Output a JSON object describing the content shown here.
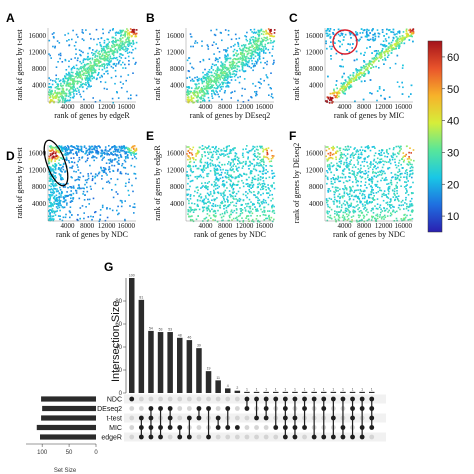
{
  "colorbar": {
    "ticks": [
      60,
      50,
      40,
      30,
      20,
      10
    ],
    "range": [
      5,
      65
    ],
    "stops": [
      "#2a1fb0",
      "#1f6fe0",
      "#19c7e6",
      "#58e69a",
      "#d6ee3a",
      "#f7b22a",
      "#e9542b",
      "#a4131b"
    ]
  },
  "panels": [
    {
      "letter": "A",
      "xlabel": "rank of genes by edgeR",
      "ylabel": "rank of genes by t-test",
      "pattern": "corr",
      "xticks": [
        "4000",
        "8000",
        "12000",
        "16000"
      ],
      "yticks": [
        "4000",
        "8000",
        "12000",
        "16000"
      ]
    },
    {
      "letter": "B",
      "xlabel": "rank of genes by DEseq2",
      "ylabel": "rank of genes by t-test",
      "pattern": "corr",
      "xticks": [
        "4000",
        "8000",
        "12000",
        "16000"
      ],
      "yticks": [
        "4000",
        "8000",
        "12000",
        "16000"
      ]
    },
    {
      "letter": "C",
      "xlabel": "rank of genes by MIC",
      "ylabel": "rank of genes by t-test",
      "pattern": "tight",
      "xticks": [
        "4000",
        "8000",
        "12000",
        "16000"
      ],
      "yticks": [
        "4000",
        "8000",
        "12000",
        "16000"
      ],
      "circle": true
    },
    {
      "letter": "D",
      "xlabel": "rank of genes by NDC",
      "ylabel": "rank of genes by t-test",
      "pattern": "fan",
      "xticks": [
        "4000",
        "8000",
        "12000",
        "16000"
      ],
      "yticks": [
        "4000",
        "8000",
        "12000",
        "16000"
      ],
      "ellipse": true
    },
    {
      "letter": "E",
      "xlabel": "rank of genes by NDC",
      "ylabel": "rank of genes by edgeR",
      "pattern": "uniform",
      "xticks": [
        "4000",
        "8000",
        "12000",
        "16000"
      ],
      "yticks": [
        "4000",
        "8000",
        "12000",
        "16000"
      ]
    },
    {
      "letter": "F",
      "xlabel": "rank of genes by NDC",
      "ylabel": "rank of genes by DEseq2",
      "pattern": "uniform",
      "xticks": [
        "4000",
        "8000",
        "12000",
        "16000"
      ],
      "yticks": [
        "4000",
        "8000",
        "12000",
        "16000"
      ]
    }
  ],
  "upset": {
    "letter": "G",
    "ylabel": "Intersection Size",
    "xlabel": "Set Size",
    "set_names": [
      "NDC",
      "DEseq2",
      "t-test",
      "MIC",
      "edgeR"
    ],
    "set_size_ticks": [
      "100",
      "50",
      "0"
    ]
  },
  "chart_data": [
    {
      "type": "upset",
      "ylabel": "Intersection Size",
      "ylim": [
        0,
        100
      ],
      "yticks": [
        0,
        20,
        40,
        60,
        80
      ],
      "intersection_sizes": [
        100,
        81,
        54,
        53,
        53,
        48,
        46,
        39,
        19,
        11,
        4,
        2,
        1,
        1,
        1,
        1,
        1,
        1,
        1,
        1,
        1,
        1,
        1,
        1,
        1,
        1
      ],
      "membership": [
        [
          "NDC"
        ],
        [
          "t-test",
          "MIC",
          "edgeR"
        ],
        [
          "DEseq2",
          "t-test",
          "MIC",
          "edgeR"
        ],
        [
          "DEseq2",
          "MIC",
          "edgeR"
        ],
        [
          "DEseq2",
          "t-test",
          "MIC"
        ],
        [
          "MIC",
          "edgeR"
        ],
        [
          "t-test",
          "edgeR"
        ],
        [
          "DEseq2",
          "t-test"
        ],
        [
          "DEseq2",
          "edgeR"
        ],
        [
          "t-test",
          "MIC"
        ],
        [
          "DEseq2",
          "MIC"
        ],
        [
          "MIC"
        ],
        [
          "NDC",
          "DEseq2"
        ],
        [
          "NDC",
          "t-test"
        ],
        [
          "NDC",
          "DEseq2",
          "t-test"
        ],
        [
          "NDC",
          "MIC"
        ],
        [
          "NDC",
          "DEseq2",
          "t-test",
          "MIC",
          "edgeR"
        ],
        [
          "NDC",
          "t-test",
          "MIC",
          "edgeR"
        ],
        [
          "NDC",
          "DEseq2",
          "MIC"
        ],
        [
          "NDC",
          "edgeR"
        ],
        [
          "NDC",
          "DEseq2",
          "edgeR"
        ],
        [
          "NDC",
          "t-test",
          "edgeR"
        ],
        [
          "NDC",
          "MIC",
          "edgeR"
        ],
        [
          "NDC",
          "DEseq2",
          "t-test",
          "edgeR"
        ],
        [
          "NDC",
          "DEseq2",
          "MIC",
          "edgeR"
        ],
        [
          "NDC",
          "DEseq2",
          "t-test",
          "MIC"
        ]
      ],
      "set_sizes": {
        "NDC": 102,
        "DEseq2": 100,
        "t-test": 102,
        "MIC": 110,
        "edgeR": 104
      },
      "set_size_xlim": [
        0,
        130
      ]
    },
    {
      "type": "scatter",
      "panels": [
        "A",
        "B",
        "C",
        "D",
        "E",
        "F"
      ],
      "xlim": [
        0,
        18000
      ],
      "ylim": [
        0,
        18000
      ],
      "colorbar_range": [
        5,
        65
      ]
    }
  ]
}
